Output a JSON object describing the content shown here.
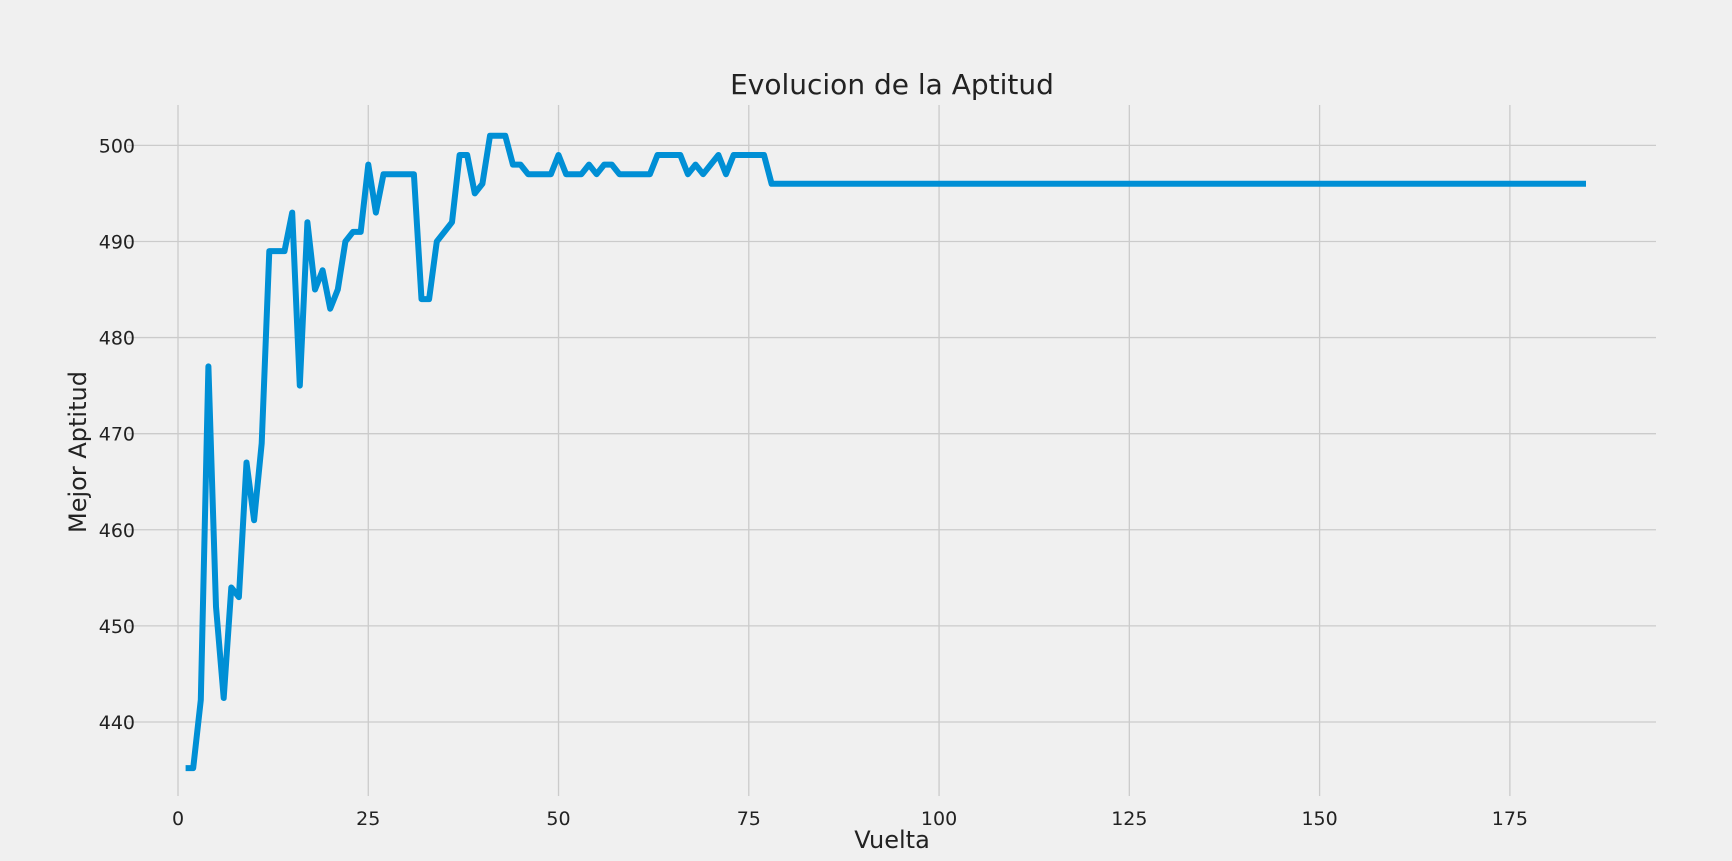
{
  "chart_data": {
    "type": "line",
    "title": "Evolucion de la Aptitud",
    "xlabel": "Vuelta",
    "ylabel": "Mejor Aptitud",
    "xlim": [
      -6.7,
      194.2
    ],
    "ylim": [
      432.3,
      504.2
    ],
    "x_ticks": [
      0,
      25,
      50,
      75,
      100,
      125,
      150,
      175
    ],
    "y_ticks": [
      440,
      450,
      460,
      470,
      480,
      490,
      500
    ],
    "grid": true,
    "legend": "none",
    "colors": {
      "background": "#f0f0f0",
      "grid": "#cbcbcb",
      "line": "#008fd5"
    },
    "series": [
      {
        "x": [
          1,
          2,
          3,
          4,
          5,
          6,
          7,
          8,
          9,
          10,
          11,
          12,
          13,
          14,
          15,
          16,
          17,
          18,
          19,
          20,
          21,
          22,
          23,
          24,
          25,
          26,
          27,
          28,
          29,
          30,
          31,
          32,
          33,
          34,
          35,
          36,
          37,
          38,
          39,
          40,
          41,
          42,
          43,
          44,
          45,
          46,
          47,
          48,
          49,
          50,
          51,
          52,
          53,
          54,
          55,
          56,
          57,
          58,
          59,
          60,
          61,
          62,
          63,
          64,
          65,
          66,
          67,
          68,
          69,
          70,
          71,
          72,
          73,
          74,
          75,
          76,
          77,
          78,
          185
        ],
        "values": [
          435.2,
          435.2,
          442.3,
          477,
          452,
          442.5,
          454,
          453,
          467,
          461,
          469,
          489,
          489,
          489,
          493,
          475,
          492,
          485,
          487,
          483,
          485,
          490,
          491,
          491,
          498,
          493,
          497,
          497,
          497,
          497,
          497,
          484,
          484,
          490,
          491,
          492,
          499,
          499,
          495,
          496,
          501,
          501,
          501,
          498,
          498,
          497,
          497,
          497,
          497,
          499,
          497,
          497,
          497,
          498,
          497,
          498,
          498,
          497,
          497,
          497,
          497,
          497,
          499,
          499,
          499,
          499,
          497,
          498,
          497,
          498,
          499,
          497,
          499,
          499,
          499,
          499,
          499,
          496,
          496
        ]
      }
    ]
  }
}
